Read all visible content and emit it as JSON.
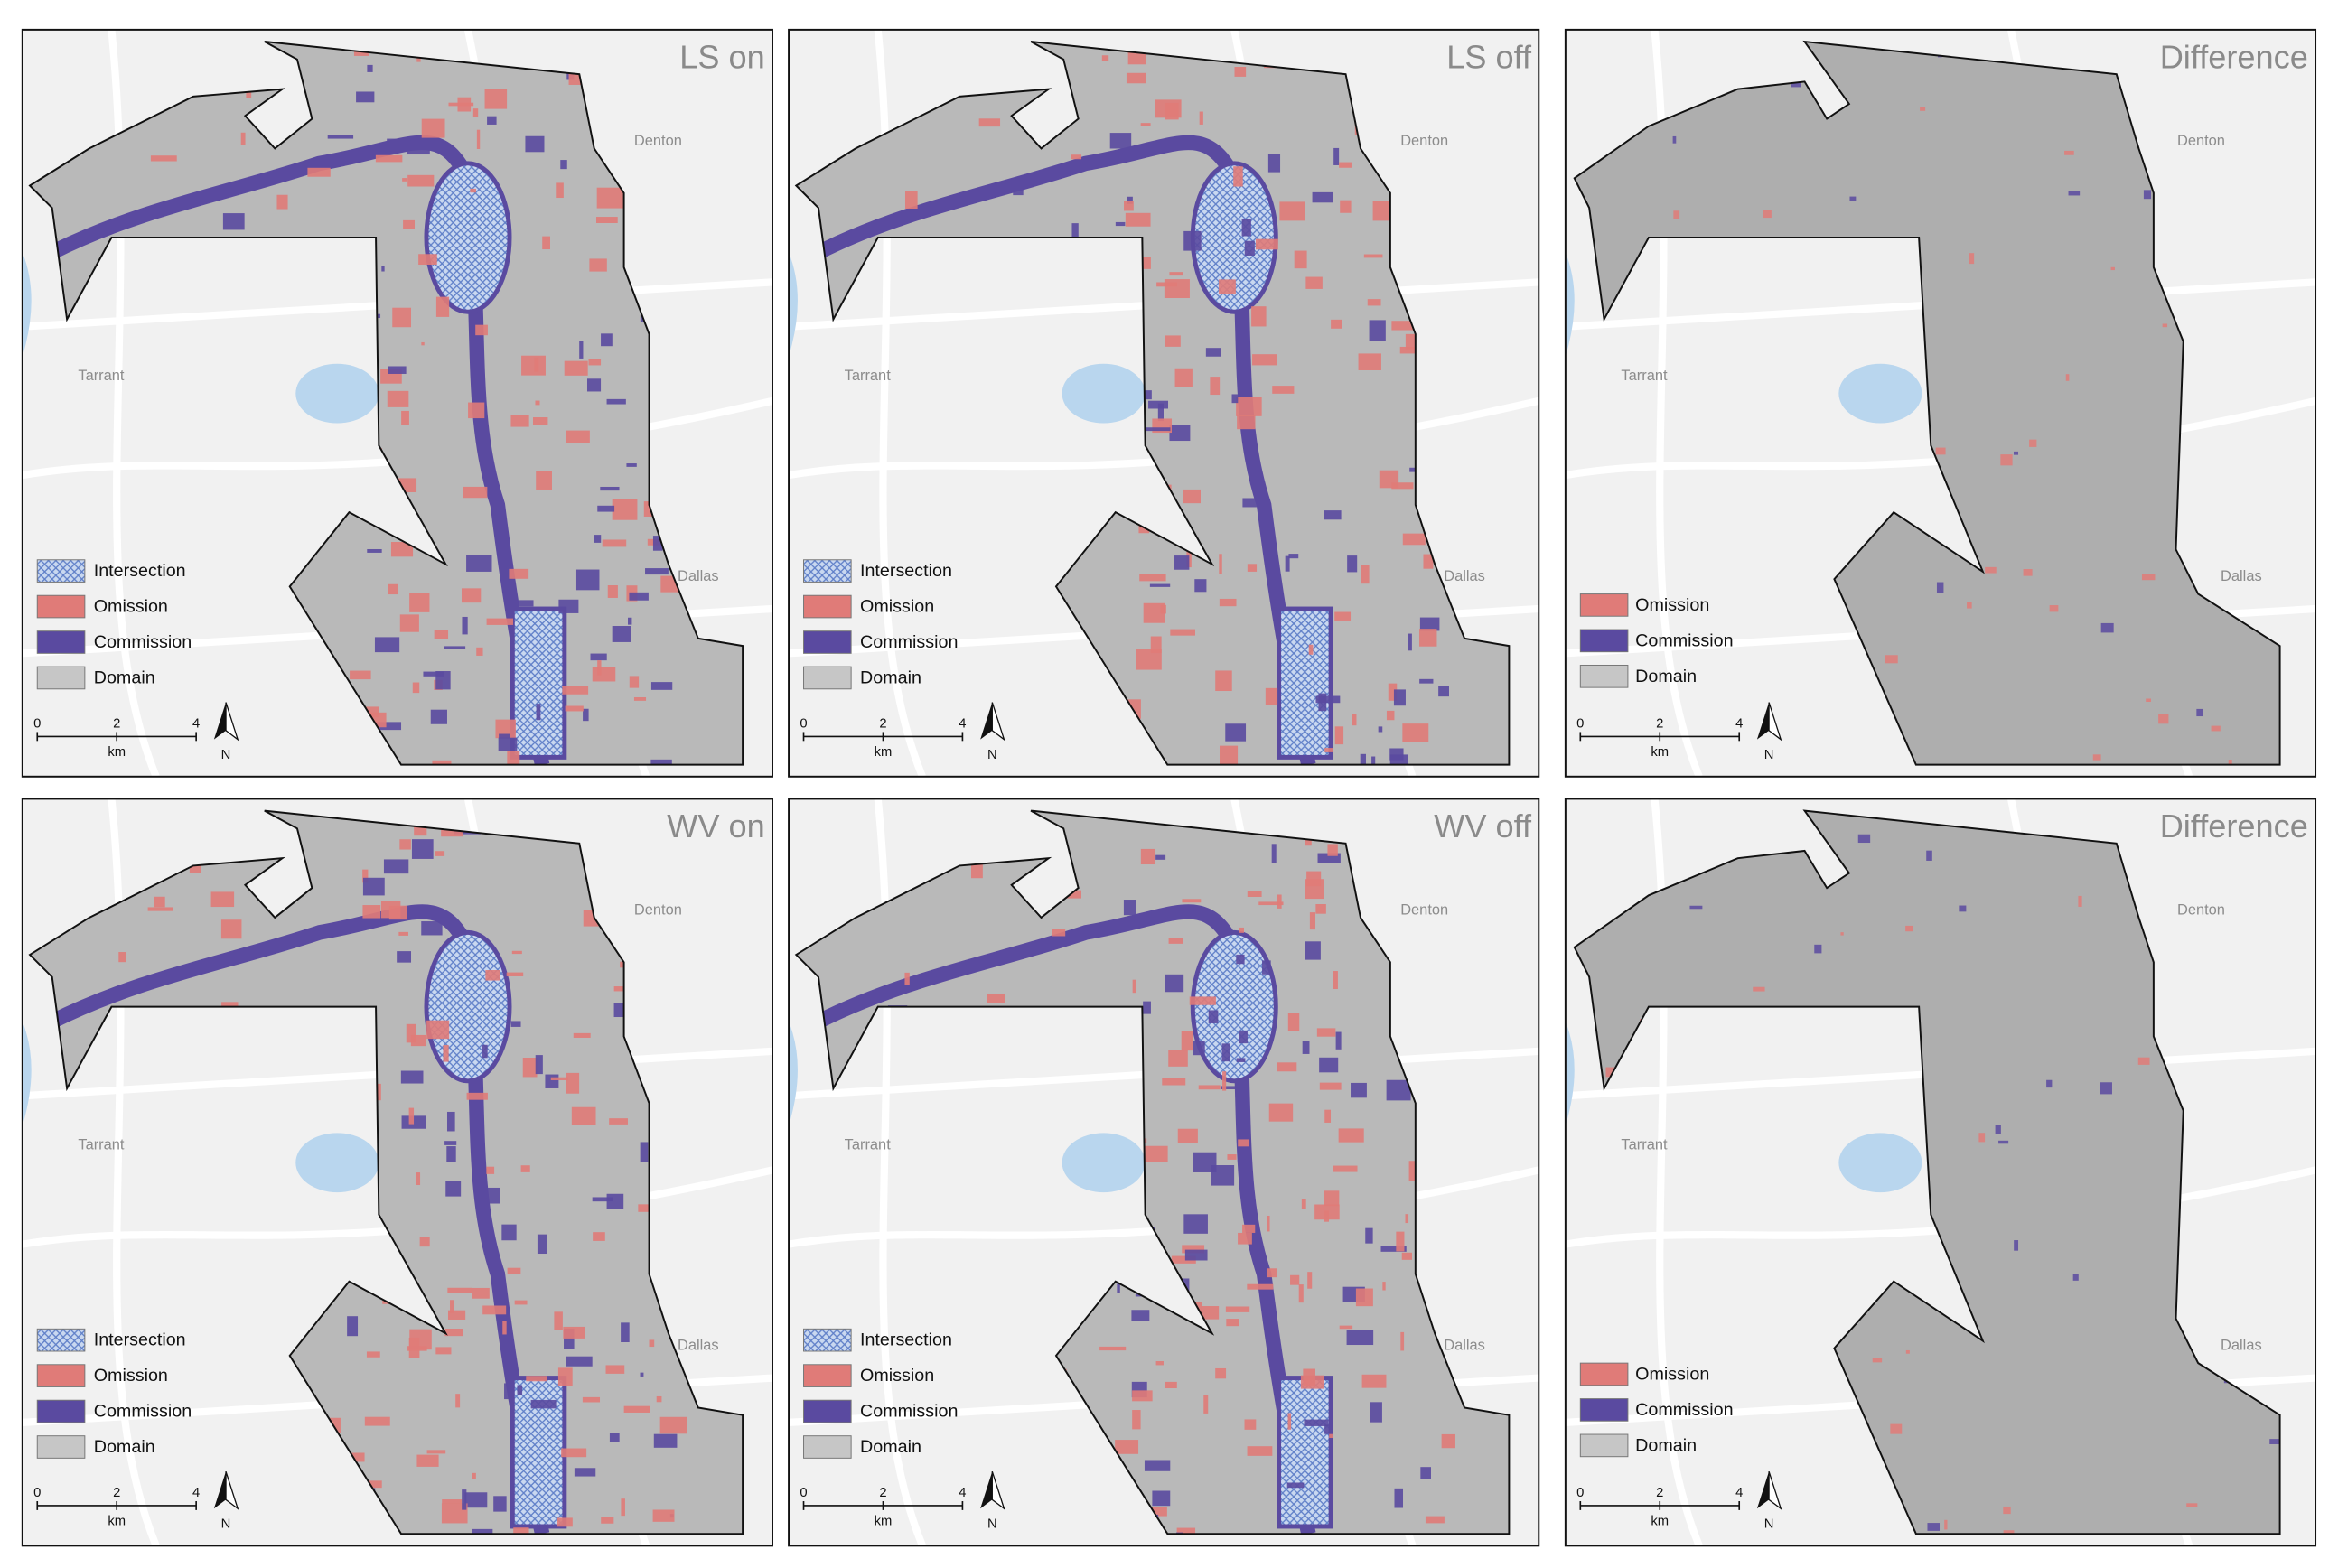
{
  "panels": [
    {
      "title": "LS on",
      "labels": [
        "Denton",
        "Tarrant",
        "Dallas"
      ],
      "legend": [
        "Intersection",
        "Omission",
        "Commission",
        "Domain"
      ],
      "scale": [
        0,
        2,
        4
      ],
      "unit": "km",
      "north": "N"
    },
    {
      "title": "LS off",
      "labels": [
        "Denton",
        "Tarrant",
        "Dallas"
      ],
      "legend": [
        "Intersection",
        "Omission",
        "Commission",
        "Domain"
      ],
      "scale": [
        0,
        2,
        4
      ],
      "unit": "km",
      "north": "N"
    },
    {
      "title": "Difference",
      "labels": [
        "Denton",
        "Tarrant",
        "Dallas"
      ],
      "legend": [
        "Omission",
        "Commission",
        "Domain"
      ],
      "scale": [
        0,
        2,
        4
      ],
      "unit": "km",
      "north": "N"
    },
    {
      "title": "WV on",
      "labels": [
        "Denton",
        "Tarrant",
        "Dallas"
      ],
      "legend": [
        "Intersection",
        "Omission",
        "Commission",
        "Domain"
      ],
      "scale": [
        0,
        2,
        4
      ],
      "unit": "km",
      "north": "N"
    },
    {
      "title": "WV off",
      "labels": [
        "Denton",
        "Tarrant",
        "Dallas"
      ],
      "legend": [
        "Intersection",
        "Omission",
        "Commission",
        "Domain"
      ],
      "scale": [
        0,
        2,
        4
      ],
      "unit": "km",
      "north": "N"
    },
    {
      "title": "Difference",
      "labels": [
        "Denton",
        "Tarrant",
        "Dallas"
      ],
      "legend": [
        "Omission",
        "Commission",
        "Domain"
      ],
      "scale": [
        0,
        2,
        4
      ],
      "unit": "km",
      "north": "N"
    }
  ]
}
